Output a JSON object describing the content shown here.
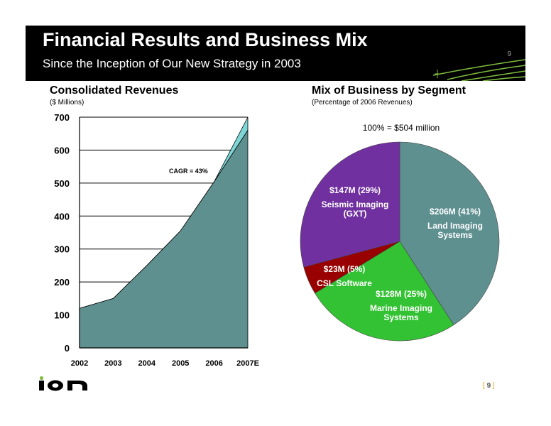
{
  "header": {
    "title": "Financial Results and Business Mix",
    "subtitle": "Since the Inception of Our New Strategy in 2003",
    "slide_number": "9"
  },
  "left_chart": {
    "title": "Consolidated Revenues",
    "subtitle": "($ Millions)"
  },
  "right_chart": {
    "title": "Mix of Business by Segment",
    "subtitle": "(Percentage of 2006 Revenues)",
    "total_label": "100% = $504 million"
  },
  "footer": {
    "logo_text": "ion",
    "page_label": "9"
  },
  "colors": {
    "area": "#5f9090",
    "cagr_band": "#7ed6d6",
    "land": "#5f9090",
    "marine": "#33c233",
    "csl": "#990000",
    "seismic": "#7030a0",
    "header_bg": "#000000",
    "accent": "#7fbf3f"
  },
  "chart_data": [
    {
      "type": "area",
      "title": "Consolidated Revenues",
      "subtitle": "($ Millions)",
      "categories": [
        "2002",
        "2003",
        "2004",
        "2005",
        "2006",
        "2007E"
      ],
      "series": [
        {
          "values": [
            120,
            150,
            250,
            355,
            504,
            660
          ]
        }
      ],
      "cagr_line": [
        120,
        150,
        250,
        355,
        504,
        700
      ],
      "annotation": "CAGR = 43%",
      "ylim": [
        0,
        700
      ],
      "yticks": [
        0,
        100,
        200,
        300,
        400,
        500,
        600,
        700
      ],
      "grid": true
    },
    {
      "type": "pie",
      "title": "Mix of Business by Segment",
      "subtitle": "(Percentage of 2006 Revenues)",
      "total": "100% = $504 million",
      "slices": [
        {
          "value_label": "$206M (41%)",
          "name": "Land Imaging Systems",
          "value": 206,
          "percent": 41
        },
        {
          "value_label": "$128M (25%)",
          "name": "Marine Imaging Systems",
          "value": 128,
          "percent": 25
        },
        {
          "value_label": "$23M (5%)",
          "name": "CSL Software",
          "value": 23,
          "percent": 5
        },
        {
          "value_label": "$147M (29%)",
          "name": "Seismic Imaging (GXT)",
          "value": 147,
          "percent": 29
        }
      ]
    }
  ]
}
